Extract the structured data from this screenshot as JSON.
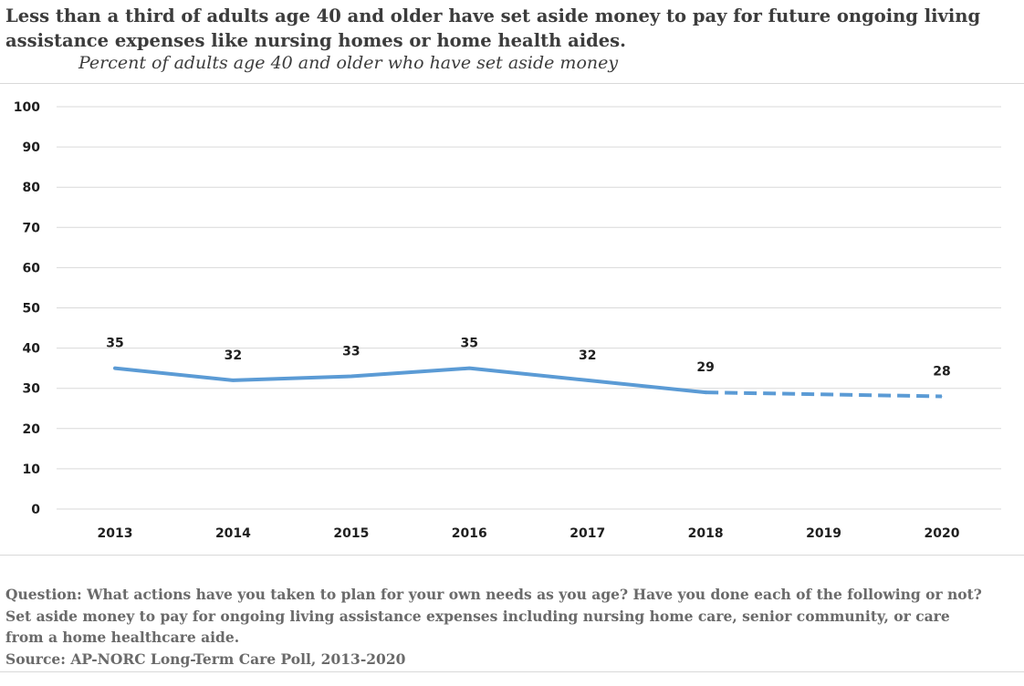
{
  "title_line1": "Less than a third of adults age 40 and older have set aside money to pay for future ongoing living",
  "title_line2": "assistance expenses like nursing homes or home health aides.",
  "subtitle": "Percent of adults age 40 and older who have set aside money",
  "notes": {
    "line1": "Question: What actions have you taken to plan for your own needs as you age?  Have you done each of the following or not?",
    "line2": "Set aside money to pay for ongoing living assistance expenses including nursing home care, senior community, or care",
    "line3": "from a home healthcare aide.",
    "source": "Source: AP-NORC Long-Term Care Poll, 2013-2020"
  },
  "chart_data": {
    "type": "line",
    "x": [
      "2013",
      "2014",
      "2015",
      "2016",
      "2017",
      "2018",
      "2019",
      "2020"
    ],
    "series": [
      {
        "values": [
          35,
          32,
          33,
          35,
          32,
          29,
          null,
          28
        ],
        "data_labels": [
          "35",
          "32",
          "33",
          "35",
          "32",
          "29",
          "",
          "28"
        ],
        "color": "#5b9bd5",
        "dashed_segment": [
          "2018",
          "2020"
        ]
      }
    ],
    "ylim": [
      0,
      100
    ],
    "yticks": [
      "0",
      "10",
      "20",
      "30",
      "40",
      "50",
      "60",
      "70",
      "80",
      "90",
      "100"
    ],
    "grid": true,
    "title": "",
    "xlabel": "",
    "ylabel": ""
  }
}
